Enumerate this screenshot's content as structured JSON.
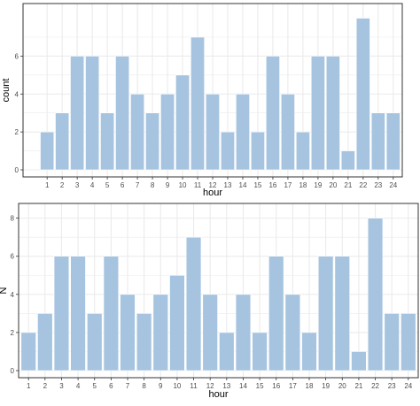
{
  "colors": {
    "bar_fill": "#a6c4df",
    "bar_stroke": "#ffffff",
    "grid": "#ebebeb",
    "panel_border": "#333333",
    "text": "#4d4d4d",
    "label": "#000000"
  },
  "chart_data": [
    {
      "type": "bar",
      "title": "",
      "xlabel": "hour",
      "ylabel": "count",
      "categories": [
        "1",
        "2",
        "3",
        "4",
        "5",
        "6",
        "7",
        "8",
        "9",
        "10",
        "11",
        "12",
        "13",
        "14",
        "15",
        "16",
        "17",
        "18",
        "19",
        "20",
        "21",
        "22",
        "23",
        "24"
      ],
      "values": [
        2,
        3,
        6,
        6,
        3,
        6,
        4,
        3,
        4,
        5,
        7,
        4,
        2,
        4,
        2,
        6,
        4,
        2,
        6,
        6,
        1,
        8,
        3,
        3
      ],
      "visible_index_start": 1,
      "yticks": [
        0,
        2,
        4,
        6
      ],
      "ylim": [
        0,
        8.4
      ],
      "grid": true,
      "theme": "light"
    },
    {
      "type": "bar",
      "title": "",
      "xlabel": "hour",
      "ylabel": "N",
      "categories": [
        "1",
        "2",
        "3",
        "4",
        "5",
        "6",
        "7",
        "8",
        "9",
        "10",
        "11",
        "12",
        "13",
        "14",
        "15",
        "16",
        "17",
        "18",
        "19",
        "20",
        "21",
        "22",
        "23",
        "24"
      ],
      "values": [
        2,
        3,
        6,
        6,
        3,
        6,
        4,
        3,
        4,
        5,
        7,
        4,
        2,
        4,
        2,
        6,
        4,
        2,
        6,
        6,
        1,
        8,
        3,
        3
      ],
      "visible_index_start": 0,
      "yticks": [
        0,
        2,
        4,
        6,
        8
      ],
      "ylim": [
        0,
        8.4
      ],
      "grid": true,
      "theme": "light"
    }
  ]
}
